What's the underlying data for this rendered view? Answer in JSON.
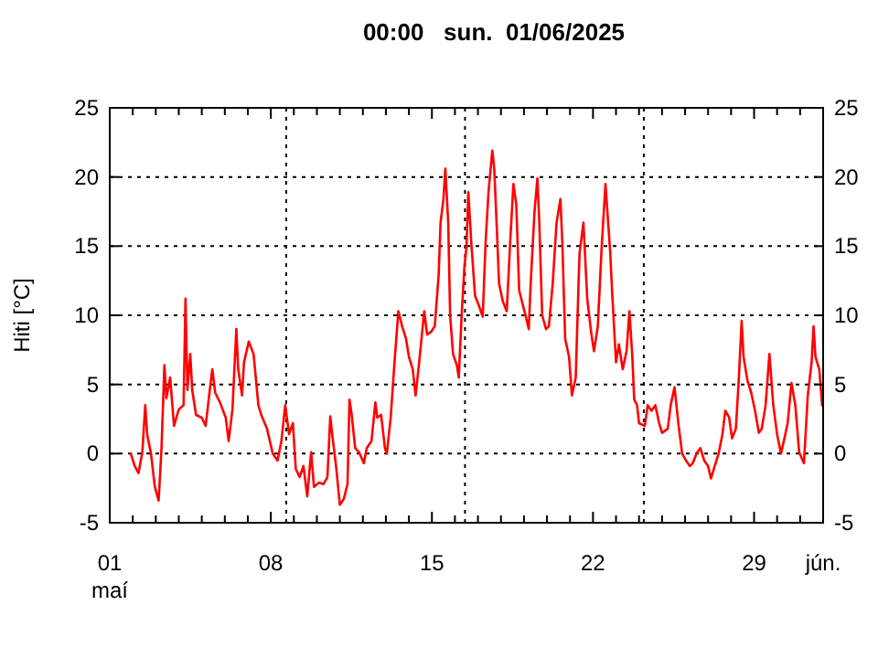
{
  "chart_data": {
    "type": "line",
    "title": "00:00   sun.  01/06/2025",
    "ylabel": "Hiti [°C]",
    "x": [
      "2025-05-01T22:00",
      "2025-05-02T02:00",
      "2025-05-02T06:00",
      "2025-05-02T10:00",
      "2025-05-02T13:00",
      "2025-05-02T15:00",
      "2025-05-02T19:00",
      "2025-05-02T23:00",
      "2025-05-03T03:00",
      "2025-05-03T06:00",
      "2025-05-03T09:00",
      "2025-05-03T11:00",
      "2025-05-03T15:00",
      "2025-05-03T19:00",
      "2025-05-04T00:00",
      "2025-05-04T05:00",
      "2025-05-04T07:00",
      "2025-05-04T09:00",
      "2025-05-04T12:00",
      "2025-05-04T14:00",
      "2025-05-04T18:00",
      "2025-05-05T00:00",
      "2025-05-05T04:00",
      "2025-05-05T08:00",
      "2025-05-05T11:00",
      "2025-05-05T14:00",
      "2025-05-05T19:00",
      "2025-05-06T01:00",
      "2025-05-06T04:00",
      "2025-05-06T08:00",
      "2025-05-06T12:00",
      "2025-05-06T14:00",
      "2025-05-06T18:00",
      "2025-05-06T20:00",
      "2025-05-07T01:00",
      "2025-05-07T06:00",
      "2025-05-07T11:00",
      "2025-05-07T14:00",
      "2025-05-07T20:00",
      "2025-05-08T02:00",
      "2025-05-08T07:00",
      "2025-05-08T11:00",
      "2025-05-08T15:00",
      "2025-05-08T19:00",
      "2025-05-08T23:00",
      "2025-05-09T02:00",
      "2025-05-09T06:00",
      "2025-05-09T10:00",
      "2025-05-09T14:00",
      "2025-05-09T18:00",
      "2025-05-09T21:00",
      "2025-05-10T02:00",
      "2025-05-10T07:00",
      "2025-05-10T11:00",
      "2025-05-10T14:00",
      "2025-05-10T16:00",
      "2025-05-10T20:00",
      "2025-05-11T00:00",
      "2025-05-11T04:00",
      "2025-05-11T08:00",
      "2025-05-11T10:00",
      "2025-05-11T12:00",
      "2025-05-11T16:00",
      "2025-05-11T20:00",
      "2025-05-12T01:00",
      "2025-05-12T04:00",
      "2025-05-12T09:00",
      "2025-05-12T13:00",
      "2025-05-12T15:00",
      "2025-05-12T19:00",
      "2025-05-12T23:00",
      "2025-05-13T01:00",
      "2025-05-13T05:00",
      "2025-05-13T09:00",
      "2025-05-13T13:00",
      "2025-05-13T17:00",
      "2025-05-13T21:00",
      "2025-05-14T00:00",
      "2025-05-14T04:00",
      "2025-05-14T07:00",
      "2025-05-14T11:00",
      "2025-05-14T16:00",
      "2025-05-14T19:00",
      "2025-05-14T23:00",
      "2025-05-15T03:00",
      "2025-05-15T07:00",
      "2025-05-15T09:00",
      "2025-05-15T12:00",
      "2025-05-15T14:00",
      "2025-05-15T17:00",
      "2025-05-15T19:00",
      "2025-05-15T22:00",
      "2025-05-16T02:00",
      "2025-05-16T04:00",
      "2025-05-16T07:00",
      "2025-05-16T10:00",
      "2025-05-16T12:00",
      "2025-05-16T14:00",
      "2025-05-16T17:00",
      "2025-05-16T21:00",
      "2025-05-17T01:00",
      "2025-05-17T05:00",
      "2025-05-17T08:00",
      "2025-05-17T11:00",
      "2025-05-17T15:00",
      "2025-05-17T17:00",
      "2025-05-17T20:00",
      "2025-05-17T22:00",
      "2025-05-18T02:00",
      "2025-05-18T06:00",
      "2025-05-18T10:00",
      "2025-05-18T13:00",
      "2025-05-18T16:00",
      "2025-05-18T19:00",
      "2025-05-18T23:00",
      "2025-05-19T02:00",
      "2025-05-19T05:00",
      "2025-05-19T07:00",
      "2025-05-19T11:00",
      "2025-05-19T14:00",
      "2025-05-19T16:00",
      "2025-05-19T19:00",
      "2025-05-19T23:00",
      "2025-05-20T02:00",
      "2025-05-20T06:00",
      "2025-05-20T10:00",
      "2025-05-20T14:00",
      "2025-05-20T16:00",
      "2025-05-20T19:00",
      "2025-05-20T23:00",
      "2025-05-21T02:00",
      "2025-05-21T06:00",
      "2025-05-21T09:00",
      "2025-05-21T10:00",
      "2025-05-21T14:00",
      "2025-05-21T18:00",
      "2025-05-21T22:00",
      "2025-05-22T01:00",
      "2025-05-22T05:00",
      "2025-05-22T09:00",
      "2025-05-22T13:00",
      "2025-05-22T15:00",
      "2025-05-22T18:00",
      "2025-05-22T20:00",
      "2025-05-23T00:00",
      "2025-05-23T03:00",
      "2025-05-23T07:00",
      "2025-05-23T11:00",
      "2025-05-23T14:00",
      "2025-05-23T17:00",
      "2025-05-23T19:00",
      "2025-05-23T22:00",
      "2025-05-24T00:00",
      "2025-05-24T06:00",
      "2025-05-24T09:00",
      "2025-05-24T13:00",
      "2025-05-24T17:00",
      "2025-05-24T21:00",
      "2025-05-25T00:00",
      "2025-05-25T06:00",
      "2025-05-25T09:00",
      "2025-05-25T13:00",
      "2025-05-25T17:00",
      "2025-05-25T21:00",
      "2025-05-26T01:00",
      "2025-05-26T05:00",
      "2025-05-26T08:00",
      "2025-05-26T12:00",
      "2025-05-26T16:00",
      "2025-05-26T20:00",
      "2025-05-27T00:00",
      "2025-05-27T03:00",
      "2025-05-27T07:00",
      "2025-05-27T11:00",
      "2025-05-27T15:00",
      "2025-05-27T18:00",
      "2025-05-27T22:00",
      "2025-05-28T01:00",
      "2025-05-28T05:00",
      "2025-05-28T08:00",
      "2025-05-28T11:00",
      "2025-05-28T13:00",
      "2025-05-28T17:00",
      "2025-05-28T21:00",
      "2025-05-29T01:00",
      "2025-05-29T05:00",
      "2025-05-29T08:00",
      "2025-05-29T12:00",
      "2025-05-29T16:00",
      "2025-05-29T20:00",
      "2025-05-30T00:00",
      "2025-05-30T04:00",
      "2025-05-30T07:00",
      "2025-05-30T11:00",
      "2025-05-30T15:00",
      "2025-05-30T19:00",
      "2025-05-30T23:00",
      "2025-05-31T04:00",
      "2025-05-31T08:00",
      "2025-05-31T12:00",
      "2025-05-31T14:00",
      "2025-05-31T16:00",
      "2025-05-31T20:00",
      "2025-05-31T23:00"
    ],
    "series": [
      {
        "color": "#ff0000",
        "values": [
          0,
          -0.9,
          -1.4,
          0.1,
          3.5,
          1.4,
          0,
          -2.4,
          -3.4,
          0.4,
          6.4,
          4,
          5.5,
          2,
          3.2,
          3.5,
          11.2,
          4.6,
          7.2,
          4.6,
          2.8,
          2.6,
          2,
          4.4,
          6.1,
          4.4,
          3.7,
          2.6,
          0.9,
          3.2,
          9,
          6.1,
          4.2,
          6.6,
          8.1,
          7.2,
          3.5,
          2.8,
          1.8,
          0,
          -0.5,
          0.9,
          3.5,
          1.4,
          2.2,
          -1.1,
          -1.7,
          -0.9,
          -3.1,
          0.1,
          -2.4,
          -2.1,
          -2.2,
          -1.7,
          2.7,
          1.4,
          -0.9,
          -3.7,
          -3.3,
          -2.2,
          3.9,
          3,
          0.4,
          0.1,
          -0.7,
          0.4,
          0.9,
          3.7,
          2.6,
          2.8,
          0.4,
          0,
          2.6,
          6.6,
          10.3,
          9.2,
          8.3,
          7,
          6.1,
          4.2,
          6.8,
          10.3,
          8.6,
          8.8,
          9.2,
          12.9,
          16.7,
          18.4,
          20.6,
          16.7,
          10,
          7.2,
          6.4,
          5.5,
          10,
          13.6,
          14.9,
          18.9,
          15.3,
          11.4,
          10.7,
          9.9,
          15.3,
          18.9,
          21.9,
          20.6,
          15.8,
          12.3,
          11,
          10.3,
          15.8,
          19.5,
          18,
          11.8,
          10.7,
          9.9,
          9,
          12.3,
          17.5,
          19.9,
          16.7,
          10,
          9,
          9.2,
          12.3,
          16.7,
          18.4,
          15.3,
          8.3,
          7,
          4.2,
          5.5,
          12.5,
          14.5,
          16.7,
          11.2,
          8.8,
          7.4,
          9.2,
          14.9,
          19.5,
          17.5,
          14.5,
          11.6,
          6.6,
          7.9,
          6.1,
          7.4,
          10.3,
          7,
          3.9,
          3.5,
          2.2,
          2,
          3.5,
          3.1,
          3.5,
          2.2,
          1.5,
          1.8,
          3.5,
          4.8,
          2.2,
          0,
          -0.5,
          -0.9,
          -0.7,
          0,
          0.4,
          -0.5,
          -0.9,
          -1.8,
          -0.9,
          0,
          1.4,
          3.1,
          2.6,
          1.1,
          1.8,
          5.3,
          9.6,
          7,
          5.3,
          4.4,
          3.1,
          1.5,
          1.8,
          3.5,
          7.2,
          3.5,
          1.4,
          0,
          0.9,
          2.2,
          5.1,
          3.5,
          0.1,
          -0.7,
          4.2,
          6.6,
          9.2,
          7,
          6.1,
          3.5
        ]
      }
    ],
    "xlim": [
      "2025-05-01",
      "2025-06-01"
    ],
    "xticks": [
      {
        "value": "2025-05-01",
        "label": "01\nmaí"
      },
      {
        "value": "2025-05-02",
        "label": null
      },
      {
        "value": "2025-05-03",
        "label": null
      },
      {
        "value": "2025-05-04",
        "label": null
      },
      {
        "value": "2025-05-05",
        "label": null
      },
      {
        "value": "2025-05-06",
        "label": null
      },
      {
        "value": "2025-05-07",
        "label": null
      },
      {
        "value": "2025-05-08",
        "label": "08"
      },
      {
        "value": "2025-05-09",
        "label": null
      },
      {
        "value": "2025-05-10",
        "label": null
      },
      {
        "value": "2025-05-11",
        "label": null
      },
      {
        "value": "2025-05-12",
        "label": null
      },
      {
        "value": "2025-05-13",
        "label": null
      },
      {
        "value": "2025-05-14",
        "label": null
      },
      {
        "value": "2025-05-15",
        "label": "15"
      },
      {
        "value": "2025-05-16",
        "label": null
      },
      {
        "value": "2025-05-17",
        "label": null
      },
      {
        "value": "2025-05-18",
        "label": null
      },
      {
        "value": "2025-05-19",
        "label": null
      },
      {
        "value": "2025-05-20",
        "label": null
      },
      {
        "value": "2025-05-21",
        "label": null
      },
      {
        "value": "2025-05-22",
        "label": "22"
      },
      {
        "value": "2025-05-23",
        "label": null
      },
      {
        "value": "2025-05-24",
        "label": null
      },
      {
        "value": "2025-05-25",
        "label": null
      },
      {
        "value": "2025-05-26",
        "label": null
      },
      {
        "value": "2025-05-27",
        "label": null
      },
      {
        "value": "2025-05-28",
        "label": null
      },
      {
        "value": "2025-05-29",
        "label": "29"
      },
      {
        "value": "2025-05-30",
        "label": null
      },
      {
        "value": "2025-05-31",
        "label": null
      },
      {
        "value": "2025-06-01",
        "label": "jún."
      }
    ],
    "ylim": [
      -5,
      25
    ],
    "yticks": [
      -5,
      0,
      5,
      10,
      15,
      20,
      25
    ],
    "y2lim": [
      -5,
      25
    ],
    "y2ticks": [
      -5,
      0,
      5,
      10,
      15,
      20,
      25
    ],
    "grid": "y",
    "marker": "none",
    "line_style": "solid",
    "ref_lines": [
      {
        "axis": "x",
        "value": "2025-05-08T16:00",
        "line_style": "dotted",
        "color": "#000000"
      },
      {
        "axis": "x",
        "value": "2025-05-16T10:30",
        "line_style": "dotted",
        "color": "#000000"
      },
      {
        "axis": "x",
        "value": "2025-05-24T05:00",
        "line_style": "dotted",
        "color": "#000000"
      }
    ]
  }
}
